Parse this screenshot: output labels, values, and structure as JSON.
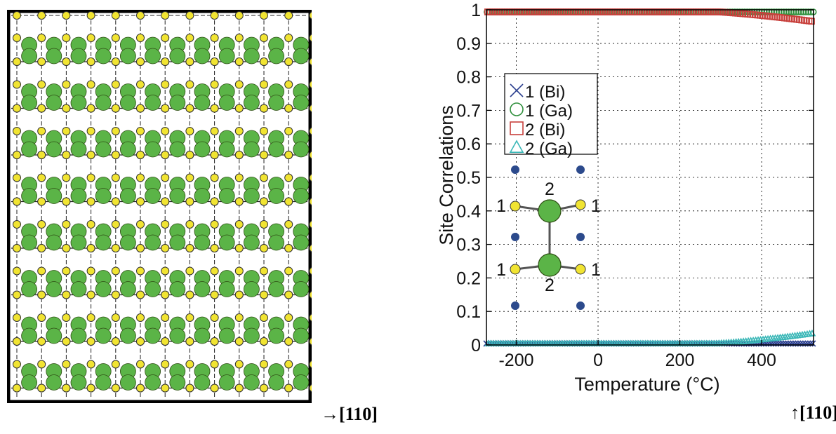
{
  "figure": {
    "lattice_direction_label": "→[110]",
    "chart_direction_label": "↑[110]",
    "lattice": {
      "columns": 13,
      "layers": 8,
      "colors": {
        "gallium": "#5bb447",
        "bismuth": "#f1e432",
        "atom_outline": "#2f4f14",
        "grid": "#222222"
      }
    },
    "inset": {
      "site_labels": {
        "upper_pair": "2",
        "lower_pair": "2",
        "left_top": "1",
        "right_top": "1",
        "left_bottom": "1",
        "right_bottom": "1"
      },
      "colors": {
        "gallium": "#5bb447",
        "bismuth": "#f1e432",
        "dots": "#2c4a8c",
        "bond": "#555555"
      }
    }
  },
  "chart_data": {
    "type": "scatter",
    "xlabel": "Temperature (°C)",
    "ylabel": "Site Correlations",
    "xlim": [
      -273,
      527
    ],
    "ylim": [
      0,
      1
    ],
    "x_ticks": [
      -200,
      0,
      200,
      400
    ],
    "y_ticks": [
      0,
      0.1,
      0.2,
      0.3,
      0.4,
      0.5,
      0.6,
      0.7,
      0.8,
      0.9,
      1
    ],
    "x_tick_labels": [
      "-200",
      "0",
      "200",
      "400"
    ],
    "y_tick_labels": [
      "0",
      "0.1",
      "0.2",
      "0.3",
      "0.4",
      "0.5",
      "0.6",
      "0.7",
      "0.8",
      "0.9",
      "1"
    ],
    "legend_position": "upper-left",
    "series": [
      {
        "name": "1 (Bi)",
        "marker": "x",
        "color": "#2b3f8f",
        "start": -273,
        "end": 527,
        "trend": "flat-then-rise",
        "y_low": 0,
        "y_at_end": 0.0,
        "rise_start": 527
      },
      {
        "name": "1 (Ga)",
        "marker": "circle",
        "color": "#2f8f3c",
        "start": -273,
        "end": 527,
        "trend": "flat-then-fall",
        "y_high": 1,
        "y_at_end": 0.997,
        "fall_start": 300
      },
      {
        "name": "2 (Bi)",
        "marker": "square",
        "color": "#c8403c",
        "start": -273,
        "end": 527,
        "trend": "flat-then-fall",
        "y_high": 1,
        "y_at_end": 0.965,
        "fall_start": 180
      },
      {
        "name": "2 (Ga)",
        "marker": "triangle",
        "color": "#3cb8b8",
        "start": -273,
        "end": 527,
        "trend": "flat-then-rise",
        "y_low": 0,
        "y_at_end": 0.035,
        "rise_start": 200
      }
    ]
  }
}
